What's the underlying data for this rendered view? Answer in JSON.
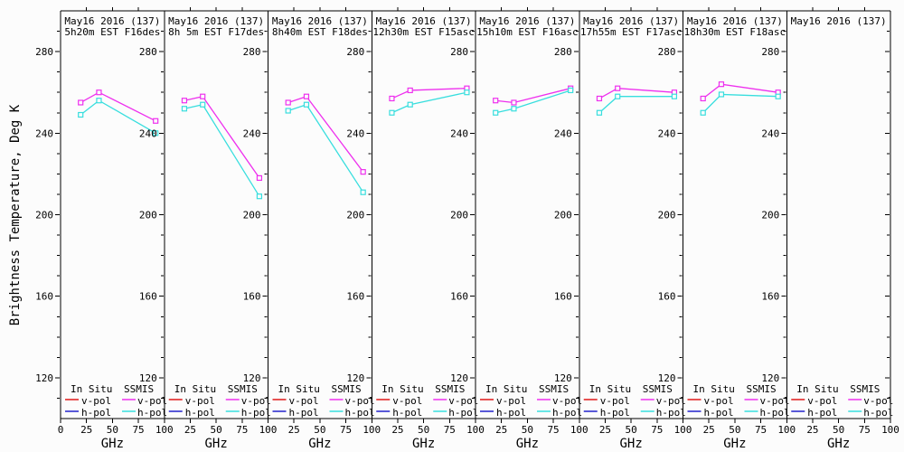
{
  "figure": {
    "background": "#fcfcfc",
    "axis_color": "#000000"
  },
  "chart_data": {
    "type": "line",
    "layout": "8 side-by-side panels sharing one y axis",
    "ylabel": "Brightness Temperature, Deg K",
    "xlabel": "GHz",
    "x": [
      19.35,
      37.0,
      91.655
    ],
    "xlim": [
      0,
      100
    ],
    "xticks": [
      25,
      50,
      75,
      100
    ],
    "first_panel_extra_xtick": 0,
    "top_ticks": [
      25,
      50,
      75
    ],
    "ylim": [
      100,
      300
    ],
    "yticks": [
      120,
      160,
      200,
      240,
      280
    ],
    "yminor_step": 10,
    "grid": false,
    "marker": "open-square",
    "colors": {
      "in_situ_v": "#e01818",
      "in_situ_h": "#2222cc",
      "ssmis_v": "#ee30ee",
      "ssmis_h": "#38dede"
    },
    "legend": {
      "position": "bottom-inside-each-panel",
      "col1_header": "In Situ",
      "col2_header": "SSMIS",
      "row_labels": [
        "v-pol",
        "h-pol"
      ],
      "col1_colors": [
        "in_situ_v",
        "in_situ_h"
      ],
      "col2_colors": [
        "ssmis_v",
        "ssmis_h"
      ]
    },
    "panels": [
      {
        "title_line1": "May16 2016 (137)",
        "title_line2": "5h20m EST F16des",
        "series": [
          {
            "name": "SSMIS v-pol",
            "color": "ssmis_v",
            "values": [
              255,
              260,
              246
            ]
          },
          {
            "name": "SSMIS h-pol",
            "color": "ssmis_h",
            "values": [
              249,
              256,
              240
            ]
          }
        ]
      },
      {
        "title_line1": "May16 2016 (137)",
        "title_line2": "8h 5m EST F17des",
        "series": [
          {
            "name": "SSMIS v-pol",
            "color": "ssmis_v",
            "values": [
              256,
              258,
              218
            ]
          },
          {
            "name": "SSMIS h-pol",
            "color": "ssmis_h",
            "values": [
              252,
              254,
              209
            ]
          }
        ]
      },
      {
        "title_line1": "May16 2016 (137)",
        "title_line2": "8h40m EST F18des",
        "series": [
          {
            "name": "SSMIS v-pol",
            "color": "ssmis_v",
            "values": [
              255,
              258,
              221
            ]
          },
          {
            "name": "SSMIS h-pol",
            "color": "ssmis_h",
            "values": [
              251,
              254,
              211
            ]
          }
        ]
      },
      {
        "title_line1": "May16 2016 (137)",
        "title_line2": "12h30m EST F15asc",
        "series": [
          {
            "name": "SSMIS v-pol",
            "color": "ssmis_v",
            "values": [
              257,
              261,
              262
            ]
          },
          {
            "name": "SSMIS h-pol",
            "color": "ssmis_h",
            "values": [
              250,
              254,
              260
            ]
          }
        ]
      },
      {
        "title_line1": "May16 2016 (137)",
        "title_line2": "15h10m EST F16asc",
        "series": [
          {
            "name": "SSMIS v-pol",
            "color": "ssmis_v",
            "values": [
              256,
              255,
              262
            ]
          },
          {
            "name": "SSMIS h-pol",
            "color": "ssmis_h",
            "values": [
              250,
              252,
              261
            ]
          }
        ]
      },
      {
        "title_line1": "May16 2016 (137)",
        "title_line2": "17h55m EST F17asc",
        "series": [
          {
            "name": "SSMIS v-pol",
            "color": "ssmis_v",
            "values": [
              257,
              262,
              260
            ]
          },
          {
            "name": "SSMIS h-pol",
            "color": "ssmis_h",
            "values": [
              250,
              258,
              258
            ]
          }
        ]
      },
      {
        "title_line1": "May16 2016 (137)",
        "title_line2": "18h30m EST F18asc",
        "series": [
          {
            "name": "SSMIS v-pol",
            "color": "ssmis_v",
            "values": [
              257,
              264,
              260
            ]
          },
          {
            "name": "SSMIS h-pol",
            "color": "ssmis_h",
            "values": [
              250,
              259,
              258
            ]
          }
        ]
      },
      {
        "title_line1": "May16 2016 (137)",
        "title_line2": "",
        "series": []
      }
    ]
  }
}
